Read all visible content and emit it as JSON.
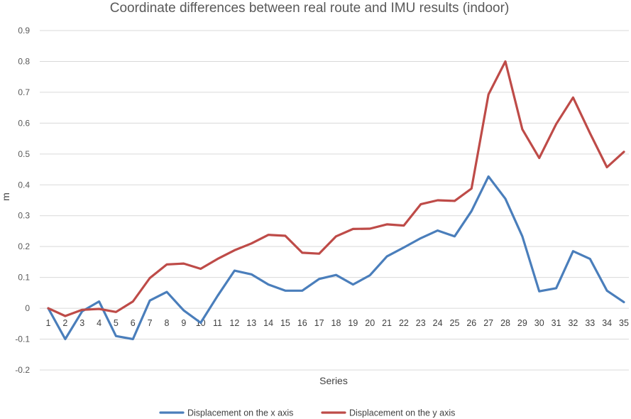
{
  "chart_data": {
    "type": "line",
    "title": "Coordinate differences between real route and IMU results (indoor)",
    "xlabel": "Series",
    "ylabel": "m",
    "ylim": [
      -0.2,
      0.9
    ],
    "yticks": [
      "-0.2",
      "-0.1",
      "0",
      "0.1",
      "0.2",
      "0.3",
      "0.4",
      "0.5",
      "0.6",
      "0.7",
      "0.8",
      "0.9"
    ],
    "ytick_values": [
      -0.2,
      -0.1,
      0,
      0.1,
      0.2,
      0.3,
      0.4,
      0.5,
      0.6,
      0.7,
      0.8,
      0.9
    ],
    "grid": true,
    "legend_position": "bottom",
    "x": [
      "1",
      "2",
      "3",
      "4",
      "5",
      "6",
      "7",
      "8",
      "9",
      "10",
      "11",
      "12",
      "13",
      "14",
      "15",
      "16",
      "17",
      "18",
      "19",
      "20",
      "21",
      "22",
      "23",
      "24",
      "25",
      "26",
      "27",
      "28",
      "29",
      "30",
      "31",
      "32",
      "33",
      "34",
      "35"
    ],
    "series": [
      {
        "name": "Displacement on the x axis",
        "color": "#4a7ebb",
        "values": [
          0,
          -0.1,
          -0.01,
          0.022,
          -0.09,
          -0.1,
          0.025,
          0.053,
          -0.007,
          -0.047,
          0.04,
          0.122,
          0.11,
          0.077,
          0.057,
          0.057,
          0.095,
          0.108,
          0.077,
          0.107,
          0.168,
          0.197,
          0.227,
          0.252,
          0.233,
          0.315,
          0.427,
          0.355,
          0.233,
          0.055,
          0.065,
          0.185,
          0.16,
          0.057,
          0.02
        ]
      },
      {
        "name": "Displacement on the y axis",
        "color": "#be4b48",
        "values": [
          0,
          -0.025,
          -0.005,
          -0.002,
          -0.012,
          0.022,
          0.098,
          0.142,
          0.145,
          0.128,
          0.16,
          0.188,
          0.21,
          0.238,
          0.235,
          0.18,
          0.177,
          0.233,
          0.257,
          0.258,
          0.272,
          0.268,
          0.337,
          0.35,
          0.348,
          0.388,
          0.693,
          0.8,
          0.58,
          0.487,
          0.597,
          0.683,
          0.567,
          0.457,
          0.507
        ]
      }
    ]
  }
}
